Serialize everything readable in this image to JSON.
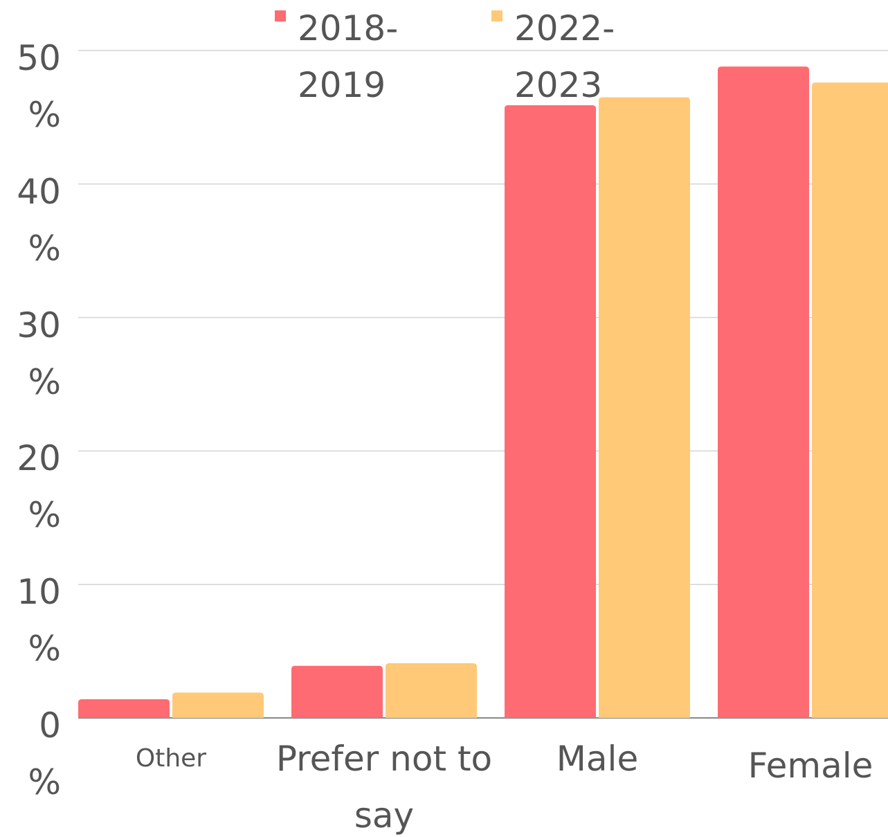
{
  "chart_data": {
    "type": "bar",
    "categories": [
      "Other",
      "Prefer not to say",
      "Male",
      "Female"
    ],
    "series": [
      {
        "name": "2018-2019",
        "color": "#ff6b72",
        "values": [
          1.4,
          3.9,
          45.9,
          48.8
        ]
      },
      {
        "name": "2022-2023",
        "color": "#ffc978",
        "values": [
          1.9,
          4.1,
          46.5,
          47.6
        ]
      }
    ],
    "ylim": [
      0,
      50
    ],
    "yticks": [
      {
        "value": 0,
        "label": "0 %"
      },
      {
        "value": 10,
        "label": "10 %"
      },
      {
        "value": 20,
        "label": "20 %"
      },
      {
        "value": 30,
        "label": "30 %"
      },
      {
        "value": 40,
        "label": "40 %"
      },
      {
        "value": 50,
        "label": "50 %"
      }
    ],
    "grid": true
  }
}
